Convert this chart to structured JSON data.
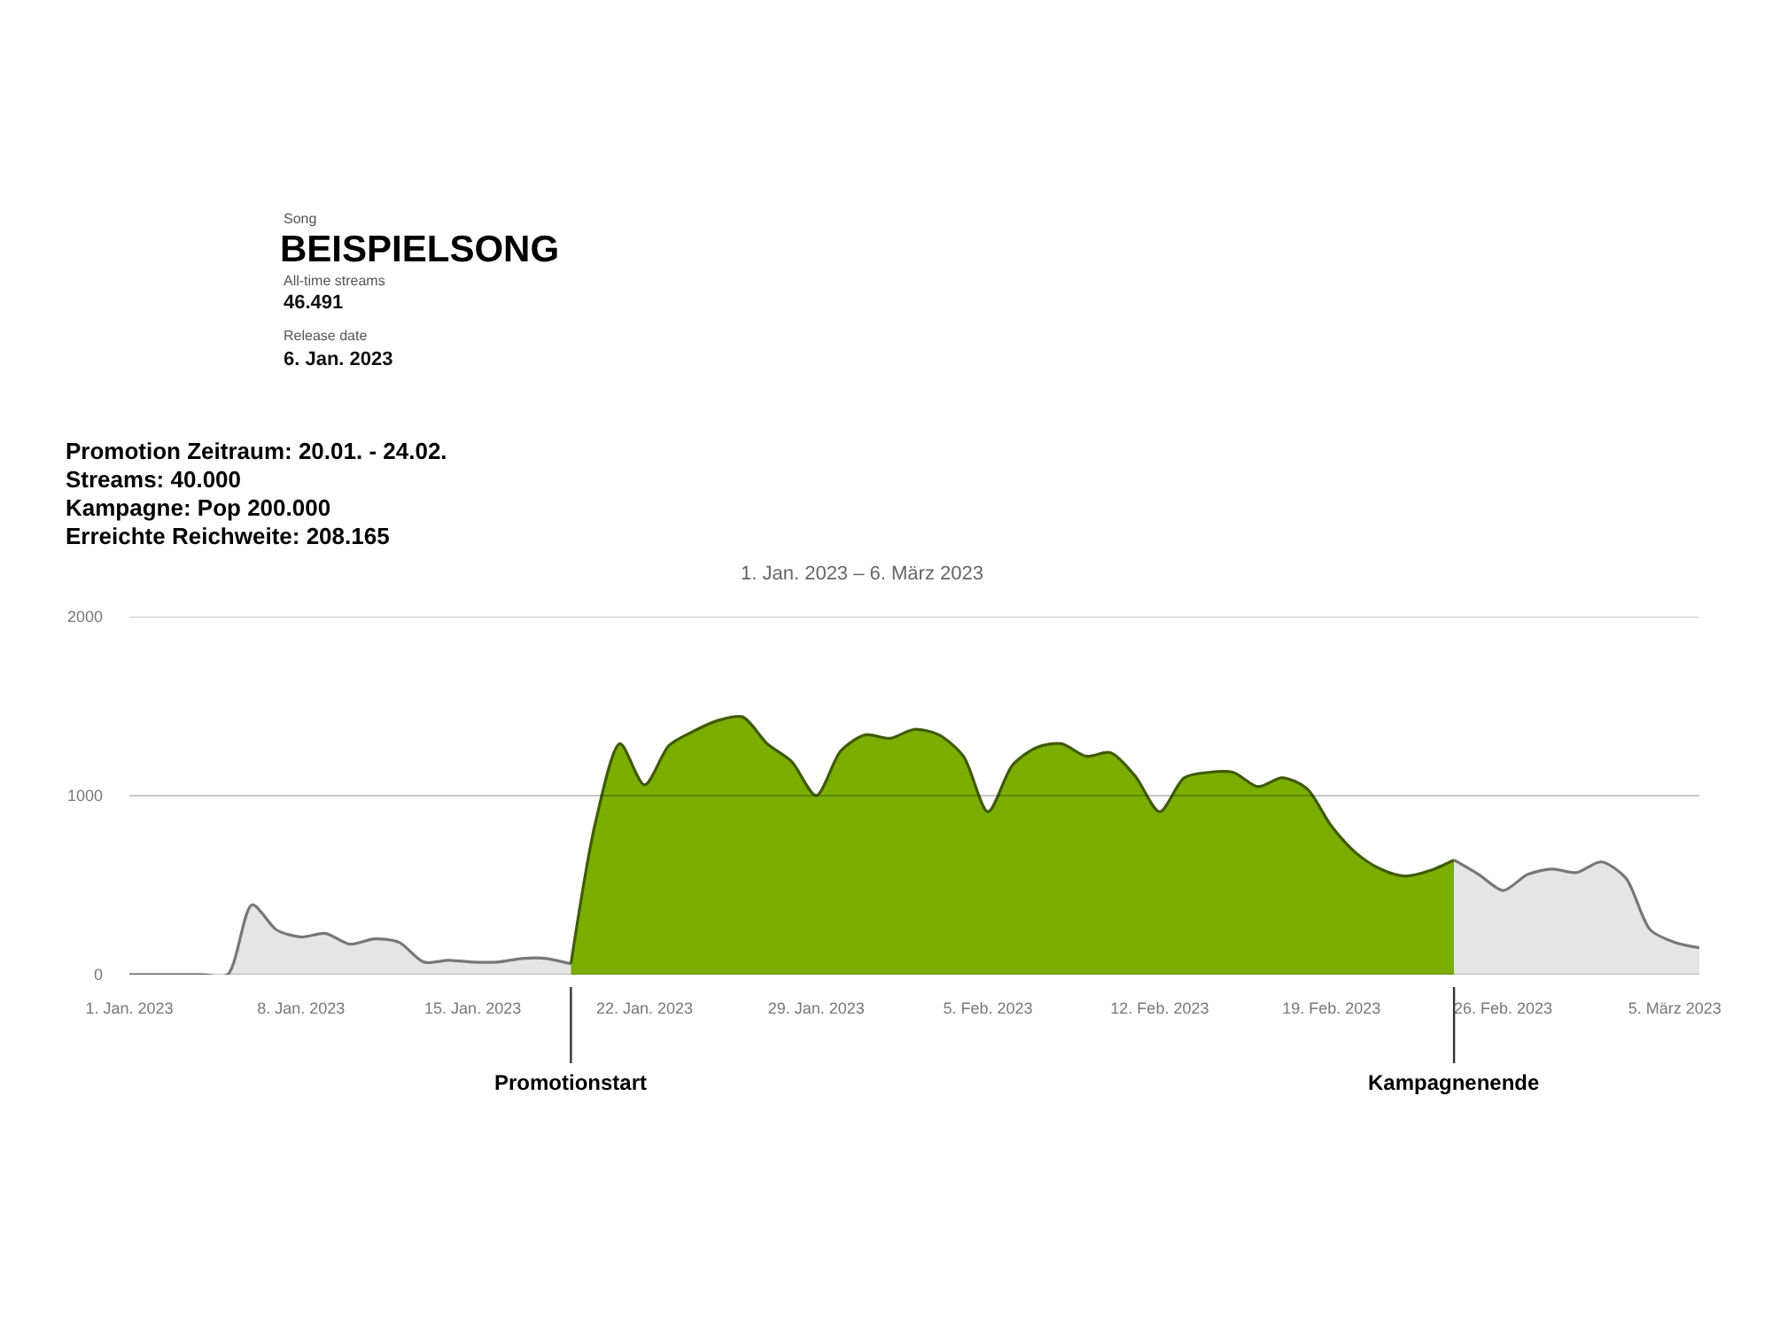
{
  "chart_data": {
    "type": "area",
    "title": "BEISPIELSONG",
    "subtitle": "1. Jan. 2023 – 6. März 2023",
    "annotations": [
      "Song",
      "All-time streams",
      "46.491",
      "Release date",
      "6. Jan. 2023",
      "Promotion Zeitraum: 20.01. - 24.02.",
      "Streams: 40.000",
      "Kampagne: Pop 200.000",
      "Erreichte Reichweite: 208.165"
    ],
    "xlim": [
      "2023-01-01",
      "2023-03-06"
    ],
    "xticks": [
      {
        "value": "2023-01-01",
        "label": "1. Jan. 2023"
      },
      {
        "value": "2023-01-08",
        "label": "8. Jan. 2023"
      },
      {
        "value": "2023-01-15",
        "label": "15. Jan. 2023"
      },
      {
        "value": "2023-01-22",
        "label": "22. Jan. 2023"
      },
      {
        "value": "2023-01-29",
        "label": "29. Jan. 2023"
      },
      {
        "value": "2023-02-05",
        "label": "5. Feb. 2023"
      },
      {
        "value": "2023-02-12",
        "label": "12. Feb. 2023"
      },
      {
        "value": "2023-02-19",
        "label": "19. Feb. 2023"
      },
      {
        "value": "2023-02-26",
        "label": "26. Feb. 2023"
      },
      {
        "value": "2023-03-05",
        "label": "5. März 2023"
      }
    ],
    "ylim": [
      0,
      2000
    ],
    "yticks": [
      0,
      1000,
      2000
    ],
    "grid": "y",
    "ref_lines": [
      {
        "axis": "x",
        "value": "2023-01-19",
        "label": "Promotionstart",
        "color": "#333333"
      },
      {
        "axis": "x",
        "value": "2023-02-24",
        "label": "Kampagnenende",
        "color": "#333333"
      }
    ],
    "series": [
      {
        "color": "#e5e5e5",
        "x": [
          "2023-01-01",
          "2023-01-02",
          "2023-01-03",
          "2023-01-04",
          "2023-01-05",
          "2023-01-06",
          "2023-01-07",
          "2023-01-08",
          "2023-01-09",
          "2023-01-10",
          "2023-01-11",
          "2023-01-12",
          "2023-01-13",
          "2023-01-14",
          "2023-01-15",
          "2023-01-16",
          "2023-01-17",
          "2023-01-18",
          "2023-01-19"
        ],
        "values": [
          0,
          0,
          0,
          0,
          0,
          390,
          250,
          210,
          230,
          170,
          200,
          180,
          70,
          80,
          70,
          70,
          90,
          90,
          60
        ]
      },
      {
        "color": "#7aae00",
        "x": [
          "2023-01-19",
          "2023-01-20",
          "2023-01-21",
          "2023-01-22",
          "2023-01-23",
          "2023-01-24",
          "2023-01-25",
          "2023-01-26",
          "2023-01-27",
          "2023-01-28",
          "2023-01-29",
          "2023-01-30",
          "2023-01-31",
          "2023-02-01",
          "2023-02-02",
          "2023-02-03",
          "2023-02-04",
          "2023-02-05",
          "2023-02-06",
          "2023-02-07",
          "2023-02-08",
          "2023-02-09",
          "2023-02-10",
          "2023-02-11",
          "2023-02-12",
          "2023-02-13",
          "2023-02-14",
          "2023-02-15",
          "2023-02-16",
          "2023-02-17",
          "2023-02-18",
          "2023-02-19",
          "2023-02-20",
          "2023-02-21",
          "2023-02-22",
          "2023-02-23",
          "2023-02-24"
        ],
        "values": [
          60,
          850,
          1290,
          1060,
          1280,
          1360,
          1420,
          1440,
          1290,
          1190,
          1000,
          1250,
          1340,
          1320,
          1370,
          1340,
          1220,
          910,
          1170,
          1270,
          1290,
          1220,
          1240,
          1110,
          910,
          1100,
          1130,
          1130,
          1050,
          1100,
          1040,
          830,
          680,
          590,
          550,
          580,
          640
        ]
      },
      {
        "color": "#e5e5e5",
        "x": [
          "2023-02-24",
          "2023-02-25",
          "2023-02-26",
          "2023-02-27",
          "2023-02-28",
          "2023-03-01",
          "2023-03-02",
          "2023-03-03",
          "2023-03-04",
          "2023-03-05",
          "2023-03-06"
        ],
        "values": [
          640,
          560,
          470,
          560,
          590,
          570,
          630,
          540,
          250,
          180,
          150
        ]
      }
    ]
  }
}
